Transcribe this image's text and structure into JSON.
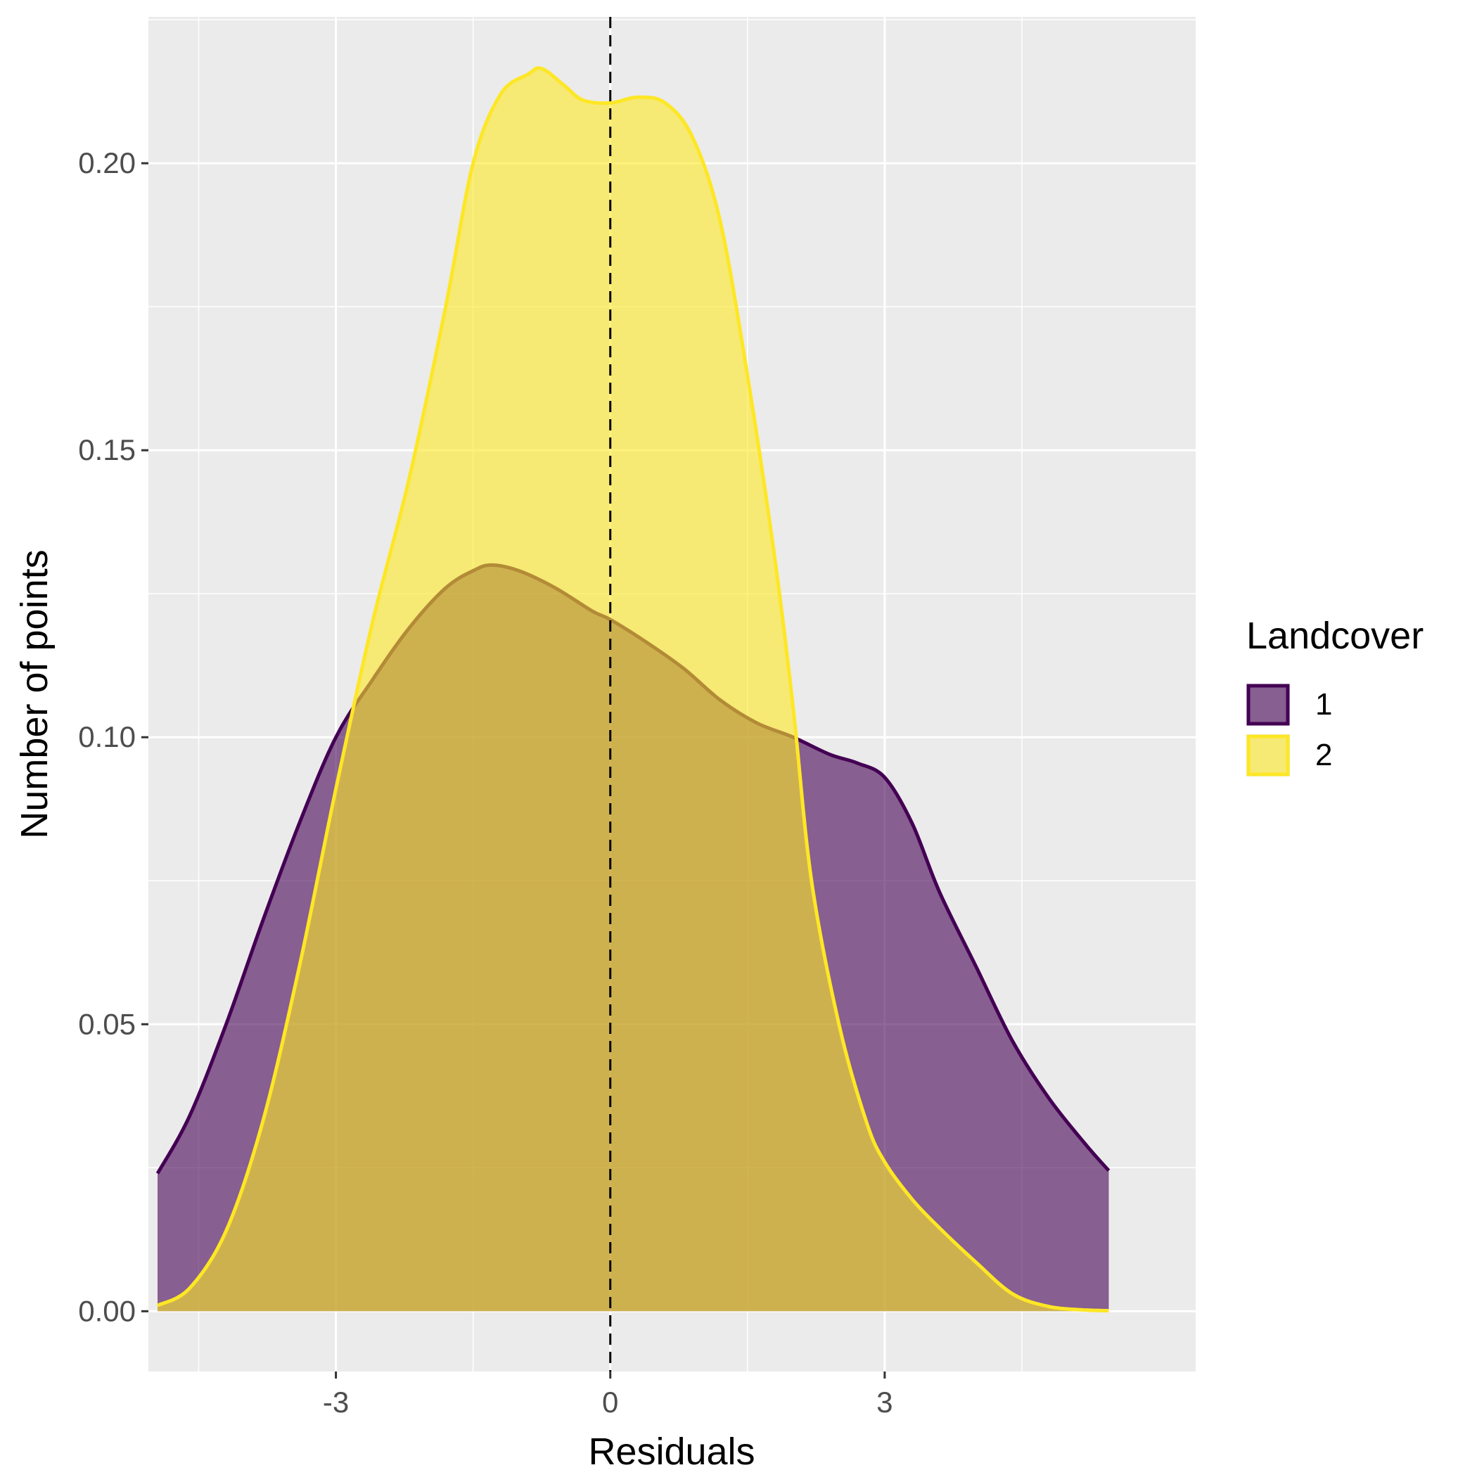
{
  "chart_data": {
    "type": "area",
    "xlabel": "Residuals",
    "ylabel": "Number of points",
    "xlim": [
      -5.05,
      6.4
    ],
    "ylim": [
      -0.0105,
      0.2255
    ],
    "x_ticks": [
      -3,
      0,
      3
    ],
    "x_tick_labels": [
      "-3",
      "0",
      "3"
    ],
    "y_ticks": [
      0.0,
      0.05,
      0.1,
      0.15,
      0.2
    ],
    "y_tick_labels": [
      "0.00",
      "0.05",
      "0.10",
      "0.15",
      "0.20"
    ],
    "grid": true,
    "reference_line": {
      "x": 0,
      "style": "dashed"
    },
    "legend": {
      "title": "Landcover",
      "position": "right"
    },
    "series": [
      {
        "name": "1",
        "fill": "#440154",
        "stroke": "#440154",
        "x": [
          -4.95,
          -4.6,
          -4.2,
          -3.8,
          -3.4,
          -3.0,
          -2.6,
          -2.2,
          -1.8,
          -1.5,
          -1.3,
          -1.0,
          -0.6,
          -0.2,
          0.0,
          0.4,
          0.8,
          1.2,
          1.6,
          2.0,
          2.4,
          2.7,
          3.0,
          3.3,
          3.6,
          4.0,
          4.4,
          4.8,
          5.2,
          5.45
        ],
        "y": [
          0.024,
          0.034,
          0.05,
          0.068,
          0.085,
          0.1,
          0.11,
          0.119,
          0.126,
          0.129,
          0.13,
          0.129,
          0.126,
          0.122,
          0.1205,
          0.1165,
          0.112,
          0.1065,
          0.1025,
          0.1,
          0.097,
          0.0955,
          0.093,
          0.085,
          0.073,
          0.06,
          0.047,
          0.037,
          0.029,
          0.0245
        ]
      },
      {
        "name": "2",
        "fill": "#FDE725",
        "stroke": "#FDE725",
        "x": [
          -4.95,
          -4.6,
          -4.2,
          -3.8,
          -3.4,
          -3.0,
          -2.6,
          -2.2,
          -1.8,
          -1.5,
          -1.2,
          -0.9,
          -0.75,
          -0.5,
          -0.3,
          0.0,
          0.3,
          0.6,
          0.9,
          1.2,
          1.5,
          1.8,
          2.0,
          2.2,
          2.5,
          2.8,
          3.0,
          3.3,
          3.6,
          4.0,
          4.4,
          4.8,
          5.2,
          5.45
        ],
        "y": [
          0.001,
          0.004,
          0.014,
          0.033,
          0.06,
          0.091,
          0.12,
          0.145,
          0.175,
          0.2,
          0.212,
          0.2155,
          0.2165,
          0.2135,
          0.211,
          0.2105,
          0.2115,
          0.2105,
          0.2045,
          0.19,
          0.163,
          0.131,
          0.105,
          0.075,
          0.05,
          0.033,
          0.026,
          0.0195,
          0.0145,
          0.0085,
          0.003,
          0.0008,
          0.0002,
          0.0001
        ]
      }
    ]
  }
}
